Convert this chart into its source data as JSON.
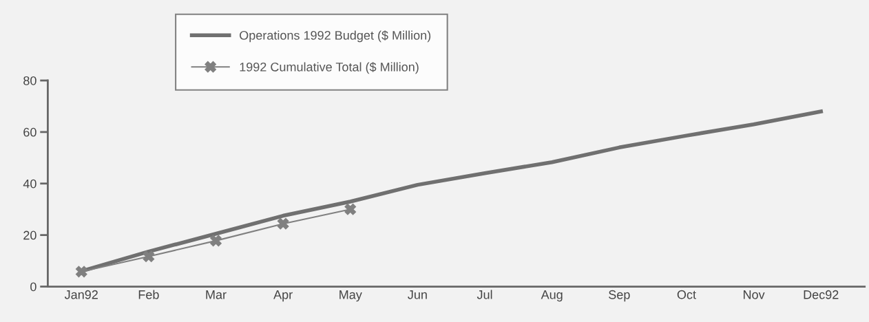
{
  "chart_data": {
    "type": "line",
    "categories": [
      "Jan92",
      "Feb",
      "Mar",
      "Apr",
      "May",
      "Jun",
      "Jul",
      "Aug",
      "Sep",
      "Oct",
      "Nov",
      "Dec92"
    ],
    "series": [
      {
        "name": "Operations 1992 Budget ($ Million)",
        "color": "#707070",
        "values": [
          6,
          13.6,
          20.5,
          27.5,
          33,
          39.5,
          44,
          48.3,
          54,
          58.6,
          63,
          68
        ],
        "marker": "none"
      },
      {
        "name": "1992 Cumulative Total ($ Million)",
        "color": "#808080",
        "values": [
          5.8,
          11.7,
          17.8,
          24.4,
          30,
          null,
          null,
          null,
          null,
          null,
          null,
          null
        ],
        "marker": "cross"
      }
    ],
    "ylim": [
      0,
      80
    ],
    "yticks": [
      0,
      20,
      40,
      60,
      80
    ],
    "grid": false,
    "legend": "top"
  }
}
